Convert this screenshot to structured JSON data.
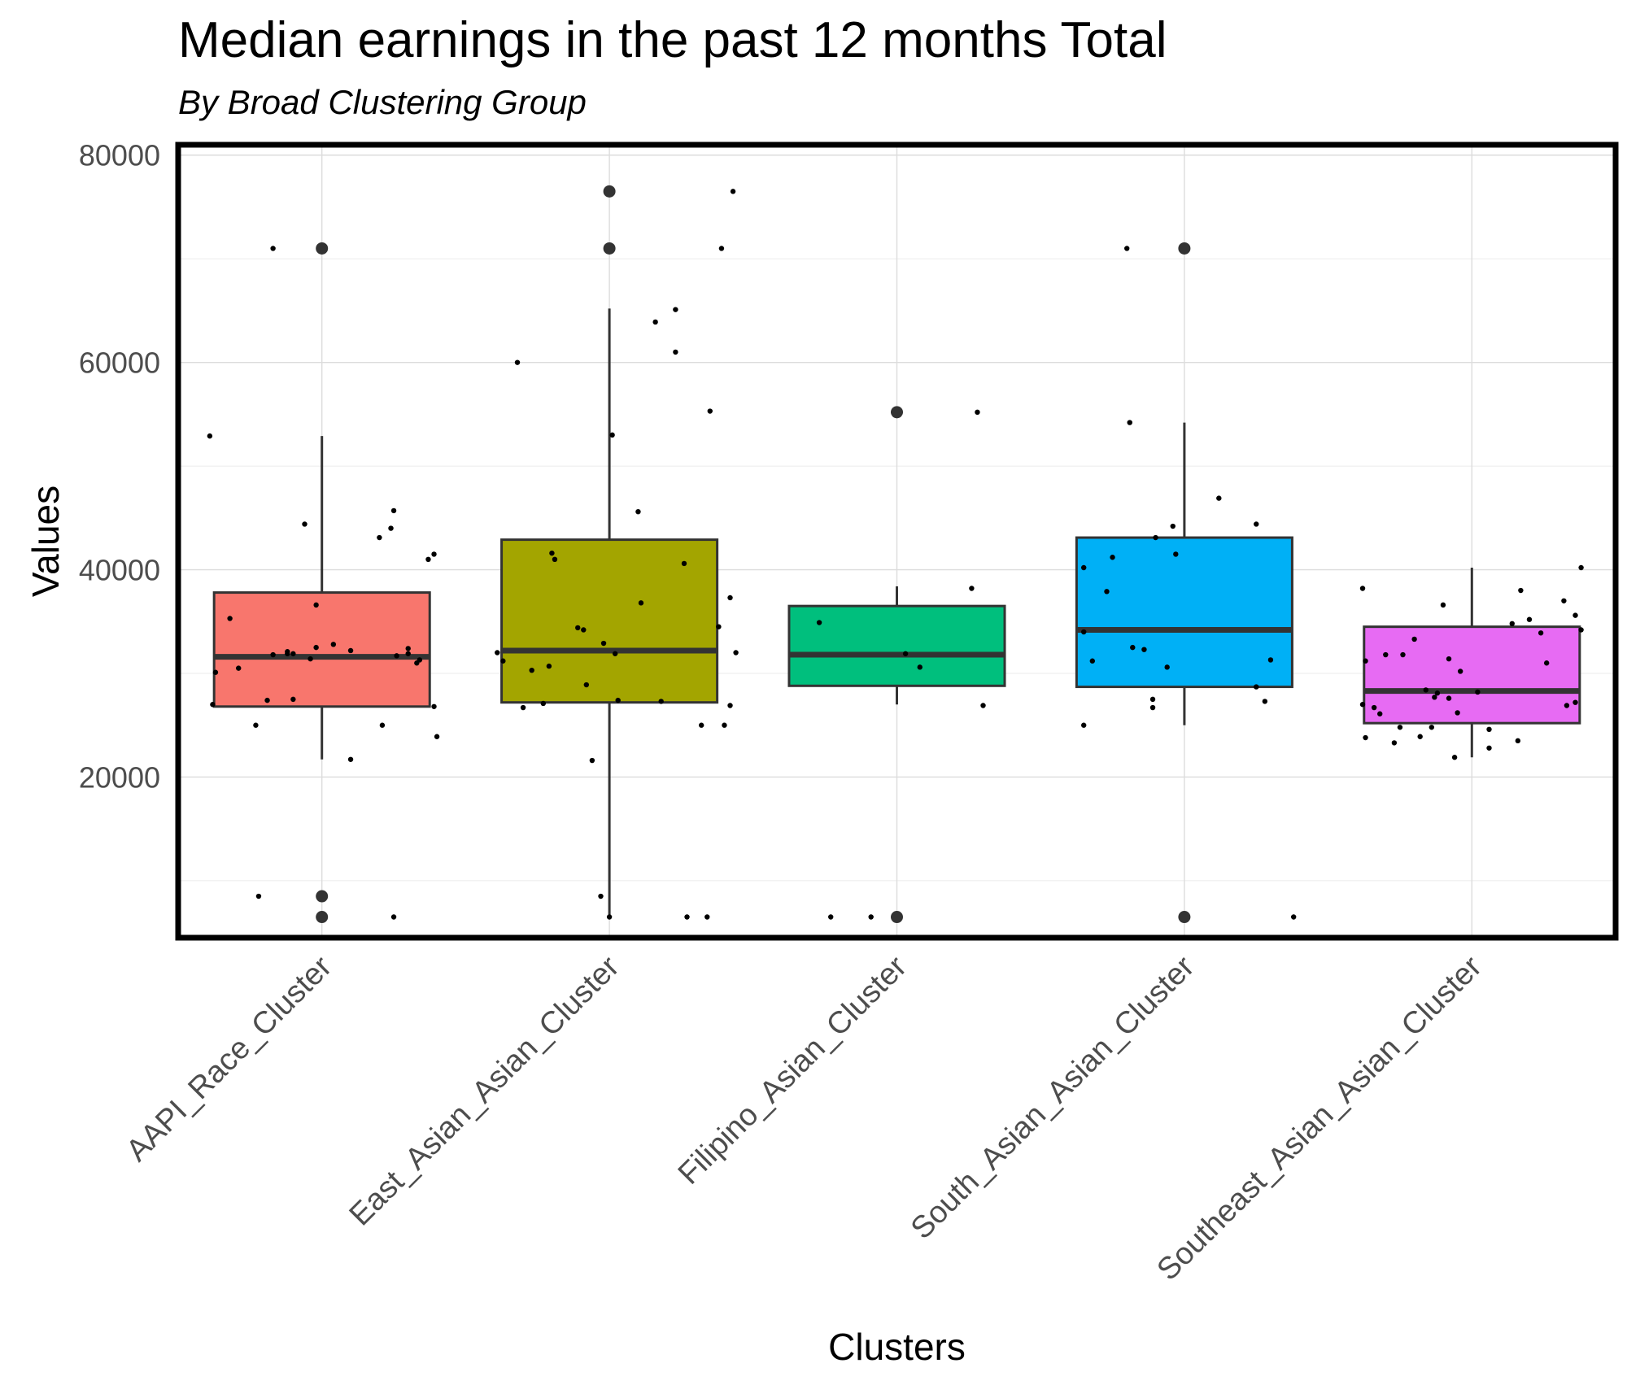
{
  "chart_data": {
    "type": "boxplot",
    "title": "Median earnings in the past 12 months Total",
    "subtitle": "By Broad Clustering Group",
    "xlabel": "Clusters",
    "ylabel": "Values",
    "ylim": [
      4500,
      81000
    ],
    "yticks": [
      20000,
      40000,
      60000,
      80000
    ],
    "ytick_labels": [
      "20000",
      "40000",
      "60000",
      "80000"
    ],
    "grid": true,
    "legend": "none",
    "categories": [
      "AAPI_Race_Cluster",
      "East_Asian_Asian_Cluster",
      "Filipino_Asian_Cluster",
      "South_Asian_Asian_Cluster",
      "Southeast_Asian_Asian_Cluster"
    ],
    "colors": [
      "#f8766d",
      "#a3a500",
      "#00bf7d",
      "#00b0f6",
      "#e76bf3"
    ],
    "boxes": [
      {
        "q1": 26800,
        "median": 31600,
        "q3": 37800,
        "whisker_low": 21700,
        "whisker_high": 52900,
        "outliers": [
          71000,
          8500,
          6500
        ]
      },
      {
        "q1": 27200,
        "median": 32200,
        "q3": 42900,
        "whisker_low": 6500,
        "whisker_high": 65200,
        "outliers": [
          76500,
          71000
        ]
      },
      {
        "q1": 28800,
        "median": 31800,
        "q3": 36500,
        "whisker_low": 27000,
        "whisker_high": 38400,
        "outliers": [
          55200,
          6500
        ]
      },
      {
        "q1": 28700,
        "median": 34200,
        "q3": 43100,
        "whisker_low": 25000,
        "whisker_high": 54200,
        "outliers": [
          71000,
          6500
        ]
      },
      {
        "q1": 25200,
        "median": 28300,
        "q3": 34500,
        "whisker_low": 21900,
        "whisker_high": 40200,
        "outliers": []
      }
    ],
    "points": [
      {
        "x": [
          -0.39,
          -0.37,
          -0.38,
          -0.32,
          -0.29,
          -0.23,
          -0.19,
          -0.17,
          -0.17,
          -0.12,
          -0.12,
          -0.1,
          -0.1,
          -0.06,
          -0.04,
          -0.02,
          0.04,
          0.1,
          0.2,
          0.21,
          0.24,
          0.25,
          0.26,
          0.3,
          0.3,
          0.33,
          0.34,
          0.39,
          0.37,
          0.4,
          0.39,
          0.1,
          -0.02,
          0.25,
          -0.22
        ],
        "y": [
          52900,
          30100,
          27000,
          35300,
          30500,
          25000,
          27400,
          71000,
          31800,
          32100,
          31900,
          27500,
          31900,
          44400,
          31400,
          36600,
          32800,
          32200,
          43100,
          25000,
          44000,
          45700,
          31700,
          32400,
          31900,
          31000,
          31300,
          41500,
          41000,
          23900,
          26800,
          21700,
          32500,
          6500,
          8500
        ]
      },
      {
        "x": [
          -0.39,
          -0.37,
          -0.32,
          -0.3,
          -0.27,
          -0.23,
          -0.21,
          -0.2,
          -0.19,
          -0.11,
          -0.08,
          -0.06,
          -0.03,
          -0.02,
          0.01,
          0.02,
          0.03,
          0.1,
          0.11,
          0.16,
          0.18,
          0.23,
          0.26,
          0.32,
          0.35,
          0.43,
          0.39,
          0.38,
          0.42,
          0.44,
          0.42,
          0.4,
          0.23,
          0.27,
          0.34,
          -0.09,
          0
        ],
        "y": [
          32000,
          31200,
          60000,
          26700,
          30300,
          27100,
          30700,
          41600,
          41000,
          34400,
          28900,
          21600,
          8500,
          32900,
          53000,
          31900,
          27400,
          45600,
          36800,
          63900,
          27300,
          61000,
          40600,
          25000,
          55300,
          76500,
          71000,
          34500,
          37300,
          32000,
          26900,
          25000,
          65100,
          6500,
          6500,
          34200,
          6500
        ]
      },
      {
        "x": [
          -0.27,
          0.03,
          -0.09,
          0.08,
          0.26,
          0.28,
          0.3,
          -0.23
        ],
        "y": [
          34900,
          31900,
          6500,
          30600,
          38200,
          55200,
          26900,
          6500
        ]
      },
      {
        "x": [
          -0.35,
          -0.35,
          -0.35,
          -0.27,
          -0.25,
          -0.19,
          -0.18,
          -0.14,
          -0.11,
          -0.11,
          -0.06,
          -0.03,
          -0.04,
          -0.1,
          -0.2,
          0.12,
          0.25,
          0.25,
          0.28,
          0.3,
          0.38,
          -0.32
        ],
        "y": [
          40200,
          34000,
          25000,
          37900,
          41200,
          54200,
          32500,
          32300,
          27500,
          26700,
          30600,
          41500,
          44200,
          43100,
          71000,
          46900,
          44400,
          28700,
          27300,
          31300,
          6500,
          31200
        ]
      },
      {
        "x": [
          -0.38,
          -0.37,
          -0.38,
          -0.37,
          -0.34,
          -0.3,
          -0.27,
          -0.25,
          -0.2,
          -0.18,
          -0.16,
          -0.14,
          -0.12,
          -0.1,
          -0.08,
          -0.08,
          -0.06,
          -0.04,
          0.02,
          0.06,
          0.06,
          0.14,
          0.17,
          0.2,
          0.26,
          0.32,
          0.33,
          0.38,
          0.36,
          0.36,
          0.38,
          -0.32,
          -0.24,
          -0.05,
          -0.13,
          0.16,
          0.24
        ],
        "y": [
          38200,
          31200,
          27000,
          23800,
          26700,
          31800,
          23300,
          24800,
          33300,
          23900,
          28400,
          24800,
          28100,
          36600,
          27600,
          31400,
          21900,
          30200,
          28200,
          22800,
          24600,
          34800,
          38000,
          35200,
          31000,
          37000,
          26900,
          40200,
          35600,
          27200,
          34200,
          26100,
          31800,
          26200,
          27700,
          23500,
          33900
        ]
      }
    ]
  }
}
